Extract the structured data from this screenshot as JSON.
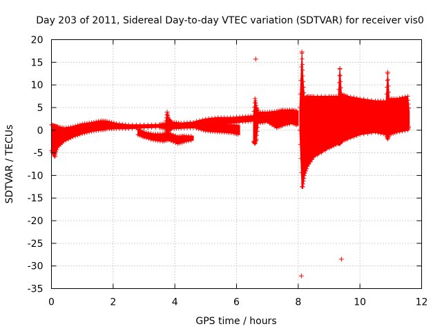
{
  "chart_data": {
    "type": "scatter",
    "title": "Day 203 of 2011, Sidereal Day-to-day VTEC variation (SDTVAR) for receiver vis0",
    "xlabel": "GPS time / hours",
    "ylabel": "SDTVAR / TECUs",
    "xlim": [
      0,
      12
    ],
    "ylim": [
      -35,
      20
    ],
    "x_ticks": [
      "0",
      "2",
      "4",
      "6",
      "8",
      "10",
      "12"
    ],
    "y_ticks": [
      "20",
      "15",
      "10",
      "5",
      "0",
      "-5",
      "-10",
      "-15",
      "-20",
      "-25",
      "-30",
      "-35"
    ],
    "grid": true,
    "marker": "+",
    "color": "#ff0000",
    "series": [
      {
        "envelopes": [
          {
            "x": [
              0.0,
              0.1,
              0.2,
              0.4,
              0.7,
              1.0,
              1.3,
              1.6,
              1.8,
              2.1,
              2.5,
              3.0,
              3.5,
              3.7
            ],
            "y_top": [
              1.2,
              1.0,
              0.8,
              0.5,
              0.8,
              1.4,
              1.7,
              2.1,
              2.0,
              1.5,
              1.2,
              1.2,
              1.3,
              1.5
            ],
            "y_bottom": [
              -4.5,
              -5.8,
              -3.8,
              -2.5,
              -1.5,
              -0.8,
              -0.3,
              0.0,
              0.2,
              0.3,
              0.3,
              0.5,
              0.6,
              0.3
            ]
          },
          {
            "x": [
              3.7,
              3.75,
              3.8,
              3.9,
              4.2,
              4.6,
              5.0,
              5.4,
              5.8,
              6.2,
              6.55
            ],
            "y_top": [
              1.5,
              4.0,
              2.5,
              1.8,
              1.6,
              1.8,
              2.5,
              2.8,
              2.8,
              3.0,
              3.2
            ],
            "y_bottom": [
              0.3,
              -1.0,
              0.0,
              0.3,
              0.4,
              0.5,
              0.8,
              1.2,
              1.5,
              1.8,
              2.0
            ]
          },
          {
            "x": [
              2.8,
              3.0,
              3.3,
              3.6,
              3.8,
              4.1,
              4.3,
              4.6
            ],
            "y_top": [
              0.2,
              -0.4,
              -0.8,
              -0.8,
              -0.6,
              -1.4,
              -1.2,
              -1.3
            ],
            "y_bottom": [
              -1.0,
              -1.6,
              -2.2,
              -2.5,
              -2.2,
              -3.0,
              -2.6,
              -2.2
            ]
          },
          {
            "x": [
              4.7,
              5.0,
              5.3,
              5.6,
              5.9,
              6.1
            ],
            "y_top": [
              1.5,
              1.4,
              1.3,
              1.2,
              1.2,
              1.0
            ],
            "y_bottom": [
              0.4,
              -0.2,
              -0.4,
              -0.5,
              -0.7,
              -1.0
            ]
          },
          {
            "x": [
              6.55,
              6.6,
              6.65,
              6.7,
              7.0,
              7.3,
              7.5,
              7.8,
              8.0
            ],
            "y_top": [
              3.2,
              7.0,
              5.0,
              4.0,
              4.0,
              4.2,
              4.5,
              4.5,
              4.2
            ],
            "y_bottom": [
              -2.5,
              -3.0,
              -2.0,
              1.5,
              1.8,
              0.5,
              1.0,
              1.5,
              1.0
            ]
          },
          {
            "x": [
              8.05,
              8.12,
              8.15,
              8.2,
              8.3,
              8.5,
              9.0,
              9.3,
              9.35,
              9.4,
              9.6,
              10.0,
              10.5,
              10.85,
              10.9,
              10.95,
              11.2,
              11.55,
              11.6
            ],
            "y_top": [
              5.0,
              17.0,
              12.0,
              7.0,
              7.5,
              7.5,
              7.5,
              7.5,
              13.5,
              8.0,
              7.5,
              7.0,
              6.5,
              6.5,
              12.5,
              7.0,
              7.0,
              7.5,
              4.0
            ],
            "y_bottom": [
              0.0,
              -12.5,
              -12.5,
              -10.0,
              -8.0,
              -6.0,
              -4.0,
              -3.0,
              -3.0,
              -2.5,
              -2.0,
              -1.0,
              -0.5,
              -1.0,
              -2.0,
              -1.0,
              -0.5,
              0.0,
              1.0
            ]
          }
        ],
        "outliers": [
          {
            "x": 6.62,
            "y": 15.7
          },
          {
            "x": 8.1,
            "y": -32.2
          },
          {
            "x": 9.4,
            "y": -28.5
          },
          {
            "x": 8.12,
            "y": 17.3
          },
          {
            "x": 9.35,
            "y": 13.6
          },
          {
            "x": 10.9,
            "y": 12.8
          },
          {
            "x": 3.75,
            "y": 4.0
          },
          {
            "x": 0.12,
            "y": -5.7
          }
        ]
      }
    ]
  }
}
